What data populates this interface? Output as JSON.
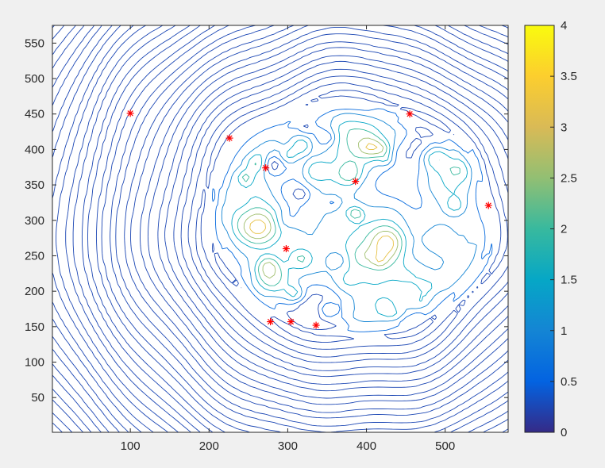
{
  "chart_data": {
    "type": "contour",
    "title": "",
    "xlabel": "",
    "ylabel": "",
    "xlim": [
      1,
      580
    ],
    "ylim": [
      1,
      575
    ],
    "x_ticks": [
      100,
      200,
      300,
      400,
      500
    ],
    "y_ticks": [
      50,
      100,
      150,
      200,
      250,
      300,
      350,
      400,
      450,
      500,
      550
    ],
    "colorbar": {
      "range": [
        0,
        4
      ],
      "ticks": [
        "0",
        "0.5",
        "1",
        "1.5",
        "2",
        "2.5",
        "3",
        "3.5",
        "4"
      ],
      "colormap": "parula"
    },
    "contour_levels": [
      0.25,
      0.6,
      1.0,
      1.5,
      2.0,
      2.6,
      3.2
    ],
    "dense_region": {
      "x_range": [
        210,
        550
      ],
      "y_range": [
        145,
        460
      ]
    },
    "markers": {
      "symbol": "*",
      "color": "#ff0000",
      "points": [
        {
          "x": 100,
          "y": 451
        },
        {
          "x": 455,
          "y": 450
        },
        {
          "x": 226,
          "y": 416
        },
        {
          "x": 272,
          "y": 374
        },
        {
          "x": 386,
          "y": 355
        },
        {
          "x": 555,
          "y": 321
        },
        {
          "x": 298,
          "y": 260
        },
        {
          "x": 278,
          "y": 157
        },
        {
          "x": 304,
          "y": 157
        },
        {
          "x": 336,
          "y": 152
        }
      ]
    },
    "grid": false,
    "legend": "none"
  }
}
